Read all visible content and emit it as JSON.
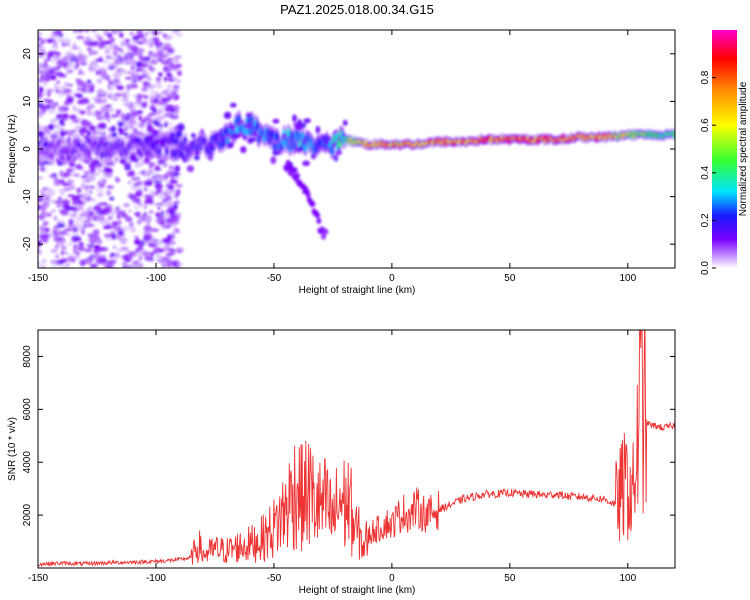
{
  "title": "PAZ1.2025.018.00.34.G15",
  "colors": {
    "snr_line": "#ee3333",
    "colormap": [
      "#ffffff",
      "#cfa8ff",
      "#7a00ff",
      "#1a1aff",
      "#00e5ff",
      "#33ff33",
      "#ffff00",
      "#ff8800",
      "#ff0000",
      "#ff00cc"
    ]
  },
  "colorbar": {
    "label": "Normalized spectral amplitude",
    "ticks": [
      "0.0",
      "0.2",
      "0.4",
      "0.6",
      "0.8"
    ],
    "tick_values": [
      0.0,
      0.2,
      0.4,
      0.6,
      0.8
    ],
    "range": [
      0,
      1
    ]
  },
  "chart_data": [
    {
      "type": "heatmap",
      "title": "PAZ1.2025.018.00.34.G15",
      "xlabel": "Height of straight line (km)",
      "ylabel": "Frequency (Hz)",
      "xlim": [
        -150,
        120
      ],
      "ylim": [
        -25,
        25
      ],
      "x_ticks": [
        -150,
        -100,
        -50,
        0,
        50,
        100
      ],
      "y_ticks": [
        -20,
        -10,
        0,
        10,
        20
      ],
      "x_tick_labels": [
        "-150",
        "-100",
        "-50",
        "0",
        "50",
        "100"
      ],
      "y_tick_labels": [
        "-20",
        "-10",
        "0",
        "10",
        "20"
      ],
      "ridge": {
        "x": [
          -150,
          -140,
          -130,
          -120,
          -110,
          -100,
          -90,
          -80,
          -75,
          -70,
          -65,
          -60,
          -55,
          -50,
          -45,
          -40,
          -35,
          -30,
          -25,
          -20,
          -15,
          -10,
          -5,
          0,
          10,
          20,
          30,
          40,
          50,
          60,
          70,
          80,
          90,
          100,
          110,
          120
        ],
        "frequency": [
          0,
          0,
          0.5,
          0,
          0.5,
          0.5,
          0.5,
          0.5,
          1,
          3,
          5,
          5,
          3,
          2,
          2,
          1.5,
          1,
          0,
          1,
          2,
          1.5,
          1,
          1,
          1,
          1,
          1.5,
          1.5,
          2,
          2,
          2,
          2,
          2.5,
          2.5,
          3,
          3,
          3
        ],
        "amplitude": [
          0.1,
          0.12,
          0.12,
          0.15,
          0.15,
          0.15,
          0.18,
          0.18,
          0.2,
          0.25,
          0.3,
          0.3,
          0.28,
          0.25,
          0.3,
          0.32,
          0.3,
          0.25,
          0.35,
          0.45,
          0.55,
          0.7,
          0.75,
          0.7,
          0.72,
          0.78,
          0.8,
          0.82,
          0.85,
          0.85,
          0.82,
          0.8,
          0.75,
          0.55,
          0.45,
          0.4
        ]
      },
      "tail": {
        "x": [
          -45,
          -40,
          -35,
          -32,
          -30,
          -28
        ],
        "frequency": [
          -3,
          -6,
          -10,
          -14,
          -17,
          -18
        ],
        "amplitude": [
          0.12,
          0.12,
          0.12,
          0.12,
          0.12,
          0.1
        ]
      }
    },
    {
      "type": "line",
      "title": "",
      "xlabel": "Height of straight line (km)",
      "ylabel": "SNR (10 * v/v)",
      "xlim": [
        -150,
        120
      ],
      "ylim": [
        0,
        9000
      ],
      "x_ticks": [
        -150,
        -100,
        -50,
        0,
        50,
        100
      ],
      "y_ticks": [
        2000,
        4000,
        6000,
        8000
      ],
      "x_tick_labels": [
        "-150",
        "-100",
        "-50",
        "0",
        "50",
        "100"
      ],
      "y_tick_labels": [
        "2000",
        "4000",
        "6000",
        "8000"
      ],
      "series": [
        {
          "x": [
            -150,
            -140,
            -130,
            -120,
            -110,
            -100,
            -95,
            -90,
            -85,
            -82,
            -80,
            -75,
            -70,
            -65,
            -60,
            -55,
            -50,
            -45,
            -42,
            -40,
            -38,
            -35,
            -33,
            -30,
            -28,
            -25,
            -22,
            -20,
            -18,
            -16,
            -14,
            -12,
            -10,
            -8,
            -5,
            -2,
            0,
            2,
            5,
            8,
            10,
            15,
            20,
            25,
            30,
            35,
            40,
            45,
            50,
            55,
            60,
            65,
            70,
            75,
            80,
            85,
            90,
            95,
            98,
            100,
            102,
            104,
            105,
            106,
            107,
            108,
            110,
            115,
            120
          ],
          "values": [
            150,
            180,
            160,
            200,
            220,
            250,
            280,
            320,
            400,
            900,
            500,
            700,
            650,
            800,
            900,
            1100,
            1500,
            2200,
            2800,
            3100,
            2600,
            2900,
            2500,
            2300,
            2400,
            1800,
            2600,
            2400,
            2500,
            1500,
            1300,
            800,
            1200,
            1400,
            1500,
            1700,
            1600,
            1900,
            2100,
            2000,
            2300,
            2000,
            2200,
            2400,
            2600,
            2700,
            2800,
            2800,
            2850,
            2800,
            2800,
            2750,
            2800,
            2700,
            2700,
            2650,
            2600,
            2400,
            3000,
            3200,
            2600,
            4500,
            6000,
            7000,
            6000,
            5500,
            5400,
            5300,
            5400
          ]
        }
      ]
    }
  ]
}
